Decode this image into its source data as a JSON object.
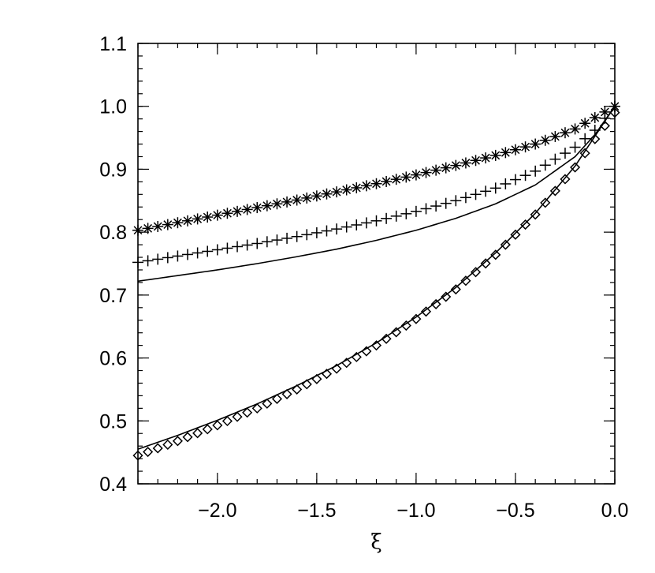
{
  "chart_data": {
    "type": "line",
    "title": "",
    "xlabel": "ξ",
    "ylabel": "",
    "xlim": [
      -2.4,
      0.0
    ],
    "ylim": [
      0.4,
      1.1
    ],
    "grid": false,
    "legend": "none",
    "x_ticks": [
      {
        "value": -2.0,
        "label": "−2.0"
      },
      {
        "value": -1.5,
        "label": "−1.5"
      },
      {
        "value": -1.0,
        "label": "−1.0"
      },
      {
        "value": -0.5,
        "label": "−0.5"
      },
      {
        "value": 0.0,
        "label": "0.0"
      }
    ],
    "y_ticks": [
      {
        "value": 0.4,
        "label": "0.4"
      },
      {
        "value": 0.5,
        "label": "0.5"
      },
      {
        "value": 0.6,
        "label": "0.6"
      },
      {
        "value": 0.7,
        "label": "0.7"
      },
      {
        "value": 0.8,
        "label": "0.8"
      },
      {
        "value": 0.9,
        "label": "0.9"
      },
      {
        "value": 1.0,
        "label": "1.0"
      },
      {
        "value": 1.1,
        "label": "1.1"
      }
    ],
    "series": [
      {
        "style": "asterisk",
        "x": [
          -2.4,
          -2.2,
          -2.0,
          -1.8,
          -1.6,
          -1.4,
          -1.2,
          -1.0,
          -0.8,
          -0.6,
          -0.4,
          -0.2,
          0.0
        ],
        "y": [
          0.803,
          0.815,
          0.827,
          0.839,
          0.851,
          0.864,
          0.877,
          0.891,
          0.906,
          0.922,
          0.94,
          0.964,
          1.0
        ]
      },
      {
        "style": "plus",
        "x": [
          -2.4,
          -2.2,
          -2.0,
          -1.8,
          -1.6,
          -1.4,
          -1.2,
          -1.0,
          -0.8,
          -0.6,
          -0.4,
          -0.2,
          -0.1,
          0.0
        ],
        "y": [
          0.752,
          0.762,
          0.772,
          0.782,
          0.793,
          0.805,
          0.818,
          0.833,
          0.85,
          0.87,
          0.897,
          0.935,
          0.962,
          1.0
        ]
      },
      {
        "style": "line",
        "x": [
          -2.4,
          -2.2,
          -2.0,
          -1.8,
          -1.6,
          -1.4,
          -1.2,
          -1.0,
          -0.8,
          -0.6,
          -0.4,
          -0.2,
          -0.1,
          0.0
        ],
        "y": [
          0.722,
          0.731,
          0.74,
          0.75,
          0.761,
          0.773,
          0.787,
          0.803,
          0.822,
          0.845,
          0.875,
          0.92,
          0.955,
          1.0
        ]
      },
      {
        "style": "line",
        "x": [
          -2.4,
          -2.2,
          -2.0,
          -1.8,
          -1.6,
          -1.4,
          -1.2,
          -1.0,
          -0.8,
          -0.6,
          -0.4,
          -0.2,
          0.0
        ],
        "y": [
          0.455,
          0.477,
          0.501,
          0.527,
          0.556,
          0.588,
          0.624,
          0.665,
          0.712,
          0.767,
          0.83,
          0.905,
          1.0
        ]
      },
      {
        "style": "diamond",
        "x": [
          -2.4,
          -2.2,
          -2.0,
          -1.8,
          -1.6,
          -1.4,
          -1.2,
          -1.0,
          -0.8,
          -0.6,
          -0.4,
          -0.2,
          -0.1,
          0.0
        ],
        "y": [
          0.445,
          0.468,
          0.493,
          0.52,
          0.55,
          0.583,
          0.62,
          0.662,
          0.709,
          0.764,
          0.828,
          0.903,
          0.948,
          0.99
        ]
      }
    ]
  }
}
